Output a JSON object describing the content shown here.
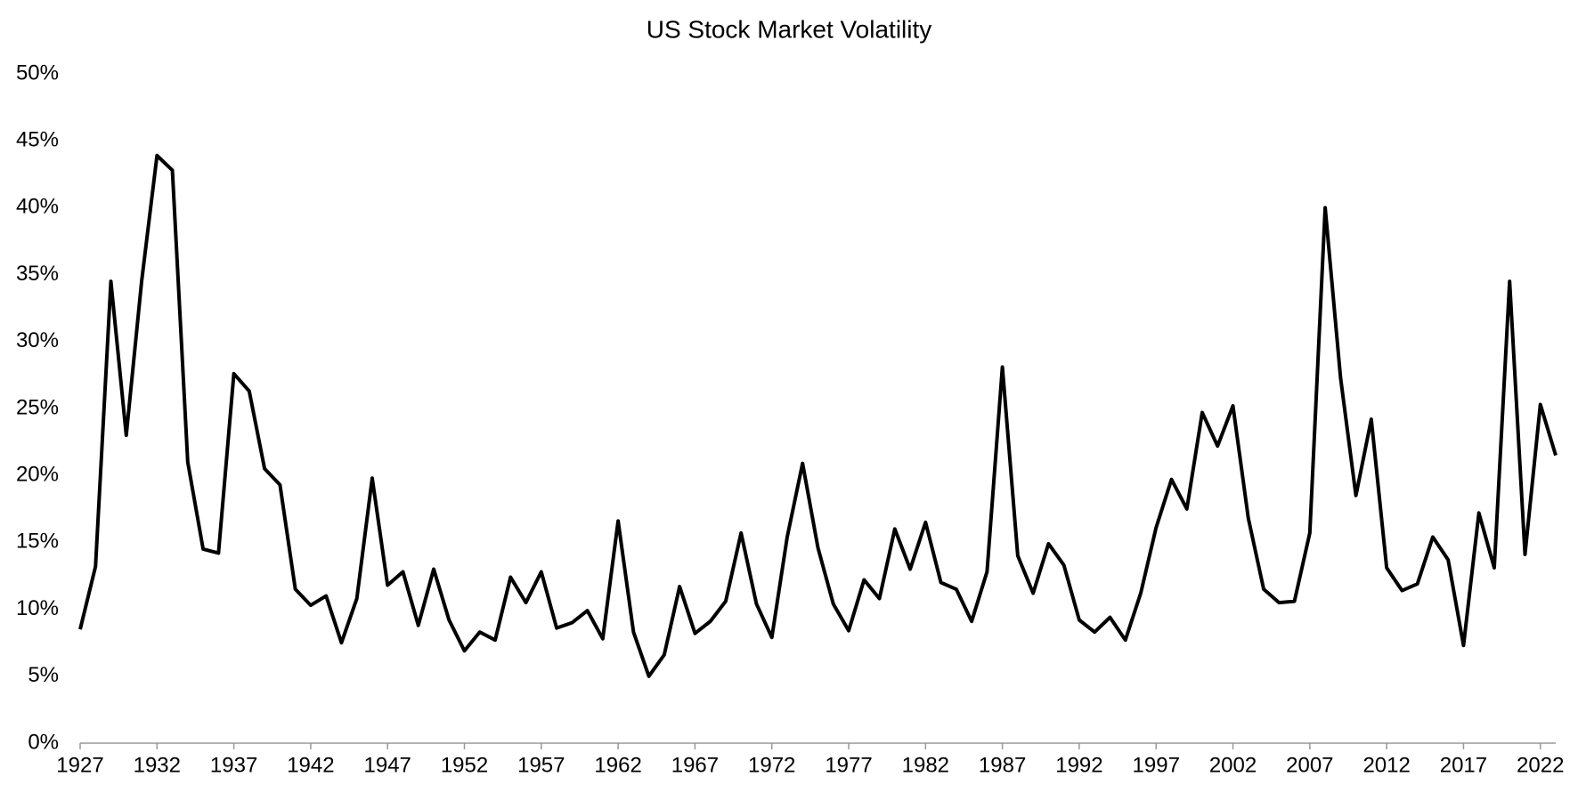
{
  "chart_data": {
    "type": "line",
    "title": "US Stock Market Volatility",
    "x": [
      1927,
      1928,
      1929,
      1930,
      1931,
      1932,
      1933,
      1934,
      1935,
      1936,
      1937,
      1938,
      1939,
      1940,
      1941,
      1942,
      1943,
      1944,
      1945,
      1946,
      1947,
      1948,
      1949,
      1950,
      1951,
      1952,
      1953,
      1954,
      1955,
      1956,
      1957,
      1958,
      1959,
      1960,
      1961,
      1962,
      1963,
      1964,
      1965,
      1966,
      1967,
      1968,
      1969,
      1970,
      1971,
      1972,
      1973,
      1974,
      1975,
      1976,
      1977,
      1978,
      1979,
      1980,
      1981,
      1982,
      1983,
      1984,
      1985,
      1986,
      1987,
      1988,
      1989,
      1990,
      1991,
      1992,
      1993,
      1994,
      1995,
      1996,
      1997,
      1998,
      1999,
      2000,
      2001,
      2002,
      2003,
      2004,
      2005,
      2006,
      2007,
      2008,
      2009,
      2010,
      2011,
      2012,
      2013,
      2014,
      2015,
      2016,
      2017,
      2018,
      2019,
      2020,
      2021,
      2022,
      2023
    ],
    "series": [
      {
        "color": "#000000",
        "values": [
          8.5,
          13.2,
          34.5,
          23.0,
          34.5,
          43.9,
          42.8,
          21.0,
          14.5,
          14.2,
          27.6,
          26.3,
          20.5,
          19.3,
          11.5,
          10.3,
          11.0,
          7.5,
          10.8,
          19.8,
          11.8,
          12.8,
          8.8,
          13.0,
          9.2,
          6.9,
          8.3,
          7.7,
          12.4,
          10.5,
          12.8,
          8.6,
          9.0,
          9.9,
          7.8,
          16.6,
          8.3,
          5.0,
          6.6,
          11.7,
          8.2,
          9.1,
          10.6,
          15.7,
          10.4,
          7.9,
          15.4,
          20.9,
          14.6,
          10.4,
          8.4,
          12.2,
          10.8,
          16.0,
          13.0,
          16.5,
          12.0,
          11.5,
          9.1,
          12.8,
          28.1,
          14.0,
          11.2,
          14.9,
          13.3,
          9.2,
          8.3,
          9.4,
          7.7,
          11.2,
          16.1,
          19.7,
          17.5,
          24.7,
          22.2,
          25.2,
          16.8,
          11.5,
          10.5,
          10.6,
          15.7,
          40.0,
          27.3,
          18.5,
          24.2,
          13.1,
          11.4,
          11.9,
          15.4,
          13.7,
          7.3,
          17.2,
          13.1,
          34.5,
          14.1,
          25.3,
          21.5
        ]
      }
    ],
    "xlim": [
      1927,
      2023
    ],
    "xticks": [
      1927,
      1932,
      1937,
      1942,
      1947,
      1952,
      1957,
      1962,
      1967,
      1972,
      1977,
      1982,
      1987,
      1992,
      1997,
      2002,
      2007,
      2012,
      2017,
      2022
    ],
    "ylim": [
      0,
      50
    ],
    "yticks": [
      {
        "value": 0,
        "label": "0%"
      },
      {
        "value": 5,
        "label": "5%"
      },
      {
        "value": 10,
        "label": "10%"
      },
      {
        "value": 15,
        "label": "15%"
      },
      {
        "value": 20,
        "label": "20%"
      },
      {
        "value": 25,
        "label": "25%"
      },
      {
        "value": 30,
        "label": "30%"
      },
      {
        "value": 35,
        "label": "35%"
      },
      {
        "value": 40,
        "label": "40%"
      },
      {
        "value": 45,
        "label": "45%"
      },
      {
        "value": 50,
        "label": "50%"
      }
    ],
    "grid": false
  }
}
